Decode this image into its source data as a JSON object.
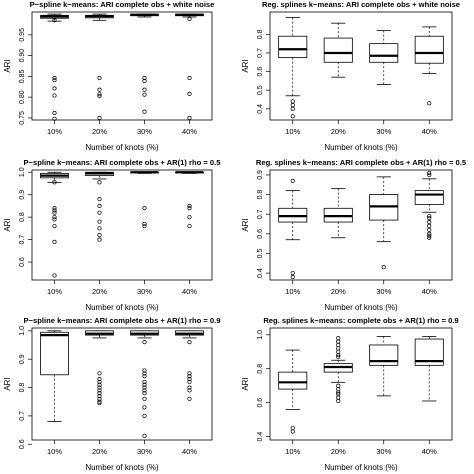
{
  "chart_data": [
    {
      "type": "boxplot",
      "title": "P−spline k−means: ARI complete obs + white noise",
      "xlabel": "Number of knots (%)",
      "ylabel": "ARI",
      "categories": [
        "10%",
        "20%",
        "30%",
        "40%"
      ],
      "ylim": [
        0.745,
        1.005
      ],
      "yticks": [
        0.75,
        0.8,
        0.85,
        0.9,
        0.95
      ],
      "ytick_labels": [
        "0.75",
        "0.80",
        "0.85",
        "0.90",
        "0.95"
      ],
      "boxes": [
        {
          "whisker_low": 0.983,
          "q1": 0.99,
          "median": 0.994,
          "q3": 0.997,
          "whisker_high": 1.0,
          "outliers": [
            0.985,
            0.846,
            0.841,
            0.821,
            0.804,
            0.762,
            0.748
          ]
        },
        {
          "whisker_low": 0.985,
          "q1": 0.991,
          "median": 0.995,
          "q3": 0.997,
          "whisker_high": 1.0,
          "outliers": [
            0.846,
            0.818,
            0.807,
            0.803,
            0.75
          ]
        },
        {
          "whisker_low": 0.993,
          "q1": 0.996,
          "median": 0.998,
          "q3": 1.0,
          "whisker_high": 1.0,
          "outliers": [
            0.846,
            0.839,
            0.818,
            0.806,
            0.765
          ]
        },
        {
          "whisker_low": 0.993,
          "q1": 0.996,
          "median": 0.998,
          "q3": 1.0,
          "whisker_high": 1.0,
          "outliers": [
            0.988,
            0.846,
            0.808,
            0.75
          ]
        }
      ]
    },
    {
      "type": "boxplot",
      "title": "Reg. splines k−means: ARI complete obs + white noise",
      "xlabel": "Number of knots (%)",
      "ylabel": "ARI",
      "categories": [
        "10%",
        "20%",
        "30%",
        "40%"
      ],
      "ylim": [
        0.34,
        0.92
      ],
      "yticks": [
        0.4,
        0.5,
        0.6,
        0.7,
        0.8
      ],
      "ytick_labels": [
        "0.4",
        "0.5",
        "0.6",
        "0.7",
        "0.8"
      ],
      "boxes": [
        {
          "whisker_low": 0.47,
          "q1": 0.675,
          "median": 0.72,
          "q3": 0.79,
          "whisker_high": 0.89,
          "outliers": [
            0.44,
            0.42,
            0.4,
            0.36
          ]
        },
        {
          "whisker_low": 0.57,
          "q1": 0.65,
          "median": 0.7,
          "q3": 0.78,
          "whisker_high": 0.86,
          "outliers": []
        },
        {
          "whisker_low": 0.53,
          "q1": 0.65,
          "median": 0.685,
          "q3": 0.75,
          "whisker_high": 0.82,
          "outliers": []
        },
        {
          "whisker_low": 0.59,
          "q1": 0.645,
          "median": 0.7,
          "q3": 0.79,
          "whisker_high": 0.84,
          "outliers": [
            0.43
          ]
        }
      ]
    },
    {
      "type": "boxplot",
      "title": "P−spline k−means: ARI complete obs + AR(1) rho = 0.5",
      "xlabel": "Number of knots (%)",
      "ylabel": "ARI",
      "categories": [
        "10%",
        "20%",
        "30%",
        "40%"
      ],
      "ylim": [
        0.52,
        1.01
      ],
      "yticks": [
        0.6,
        0.7,
        0.8,
        0.9,
        1.0
      ],
      "ytick_labels": [
        "0.6",
        "0.7",
        "0.8",
        "0.9",
        "1.0"
      ],
      "boxes": [
        {
          "whisker_low": 0.955,
          "q1": 0.975,
          "median": 0.985,
          "q3": 0.995,
          "whisker_high": 1.0,
          "outliers": [
            0.955,
            0.84,
            0.83,
            0.82,
            0.8,
            0.79,
            0.76,
            0.69,
            0.54
          ]
        },
        {
          "whisker_low": 0.97,
          "q1": 0.985,
          "median": 0.995,
          "q3": 1.0,
          "whisker_high": 1.0,
          "outliers": [
            0.955,
            0.88,
            0.85,
            0.82,
            0.78,
            0.75,
            0.72,
            0.7
          ]
        },
        {
          "whisker_low": 0.995,
          "q1": 0.998,
          "median": 1.0,
          "q3": 1.0,
          "whisker_high": 1.0,
          "outliers": [
            0.84,
            0.77,
            0.76
          ]
        },
        {
          "whisker_low": 0.995,
          "q1": 0.998,
          "median": 1.0,
          "q3": 1.0,
          "whisker_high": 1.0,
          "outliers": [
            0.85,
            0.84,
            0.8,
            0.76
          ]
        }
      ]
    },
    {
      "type": "boxplot",
      "title": "Reg. splines k−means: ARI complete obs + AR(1) rho = 0.5",
      "xlabel": "Number of knots (%)",
      "ylabel": "ARI",
      "categories": [
        "10%",
        "20%",
        "30%",
        "40%"
      ],
      "ylim": [
        0.365,
        0.925
      ],
      "yticks": [
        0.4,
        0.5,
        0.6,
        0.7,
        0.8,
        0.9
      ],
      "ytick_labels": [
        "0.4",
        "0.5",
        "0.6",
        "0.7",
        "0.8",
        "0.9"
      ],
      "boxes": [
        {
          "whisker_low": 0.57,
          "q1": 0.66,
          "median": 0.69,
          "q3": 0.73,
          "whisker_high": 0.82,
          "outliers": [
            0.87,
            0.4,
            0.38
          ]
        },
        {
          "whisker_low": 0.58,
          "q1": 0.66,
          "median": 0.69,
          "q3": 0.73,
          "whisker_high": 0.83,
          "outliers": []
        },
        {
          "whisker_low": 0.56,
          "q1": 0.67,
          "median": 0.74,
          "q3": 0.8,
          "whisker_high": 0.89,
          "outliers": [
            0.43
          ]
        },
        {
          "whisker_low": 0.71,
          "q1": 0.75,
          "median": 0.8,
          "q3": 0.82,
          "whisker_high": 0.88,
          "outliers": [
            0.91,
            0.9,
            0.69,
            0.68,
            0.66,
            0.64,
            0.62,
            0.6,
            0.59,
            0.58
          ]
        }
      ]
    },
    {
      "type": "boxplot",
      "title": "P−spline k−means: ARI complete obs + AR(1) rho = 0.9",
      "xlabel": "Number of knots (%)",
      "ylabel": "ARI",
      "categories": [
        "10%",
        "20%",
        "30%",
        "40%"
      ],
      "ylim": [
        0.615,
        1.01
      ],
      "yticks": [
        0.6,
        0.7,
        0.8,
        0.9,
        1.0
      ],
      "ytick_labels": [
        "0.6",
        "0.7",
        "0.8",
        "0.9",
        "1.0"
      ],
      "boxes": [
        {
          "whisker_low": 0.68,
          "q1": 0.845,
          "median": 0.985,
          "q3": 0.995,
          "whisker_high": 1.0,
          "outliers": []
        },
        {
          "whisker_low": 0.975,
          "q1": 0.985,
          "median": 0.99,
          "q3": 1.0,
          "whisker_high": 1.0,
          "outliers": [
            0.85,
            0.83,
            0.82,
            0.81,
            0.8,
            0.79,
            0.78,
            0.77,
            0.76,
            0.75,
            0.745
          ]
        },
        {
          "whisker_low": 0.975,
          "q1": 0.985,
          "median": 0.99,
          "q3": 1.0,
          "whisker_high": 1.0,
          "outliers": [
            0.96,
            0.86,
            0.85,
            0.84,
            0.82,
            0.81,
            0.8,
            0.79,
            0.78,
            0.76,
            0.73,
            0.7,
            0.63
          ]
        },
        {
          "whisker_low": 0.975,
          "q1": 0.985,
          "median": 0.99,
          "q3": 1.0,
          "whisker_high": 1.0,
          "outliers": [
            0.96,
            0.85,
            0.84,
            0.83,
            0.82,
            0.8,
            0.79,
            0.76
          ]
        }
      ]
    },
    {
      "type": "boxplot",
      "title": "Reg. splines k−means: complete obs + AR(1) rho = 0.9",
      "xlabel": "Number of knots (%)",
      "ylabel": "ARI",
      "categories": [
        "10%",
        "20%",
        "30%",
        "40%"
      ],
      "ylim": [
        0.38,
        1.04
      ],
      "yticks": [
        0.4,
        0.6,
        0.8,
        1.0
      ],
      "ytick_labels": [
        "0.4",
        "0.6",
        "0.8",
        "1.0"
      ],
      "boxes": [
        {
          "whisker_low": 0.56,
          "q1": 0.68,
          "median": 0.72,
          "q3": 0.78,
          "whisker_high": 0.91,
          "outliers": [
            0.45,
            0.43
          ]
        },
        {
          "whisker_low": 0.72,
          "q1": 0.78,
          "median": 0.81,
          "q3": 0.83,
          "whisker_high": 0.85,
          "outliers": [
            0.98,
            0.96,
            0.94,
            0.92,
            0.9,
            0.88,
            0.87,
            0.7,
            0.68,
            0.66,
            0.65,
            0.63,
            0.61
          ]
        },
        {
          "whisker_low": 0.64,
          "q1": 0.82,
          "median": 0.845,
          "q3": 0.94,
          "whisker_high": 0.99,
          "outliers": []
        },
        {
          "whisker_low": 0.61,
          "q1": 0.82,
          "median": 0.845,
          "q3": 0.975,
          "whisker_high": 0.99,
          "outliers": []
        }
      ]
    }
  ]
}
